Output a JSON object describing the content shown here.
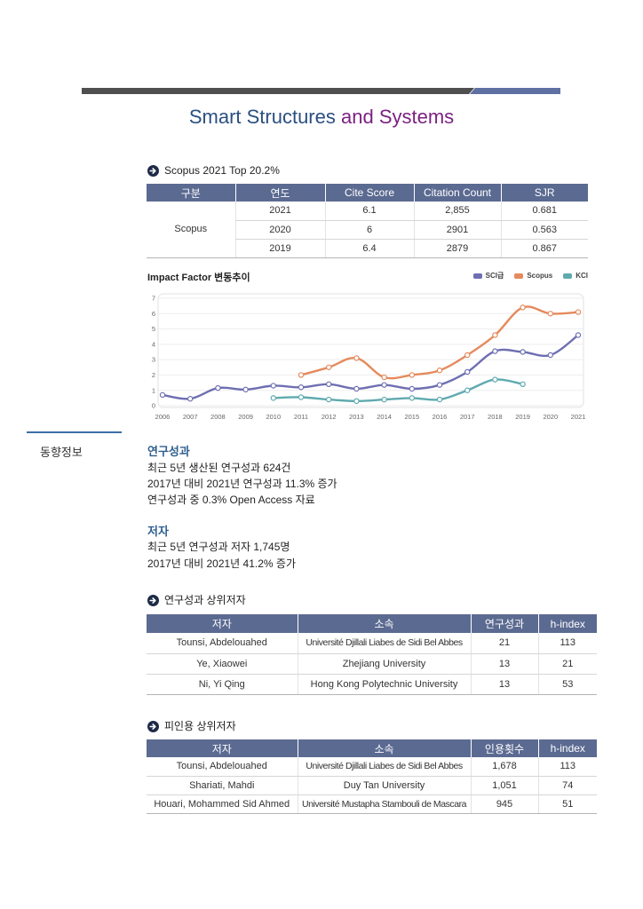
{
  "theme": {
    "title_primary": "#2b4f80",
    "title_secondary": "#7c2182",
    "table_header_bg": "#5b6a91",
    "heading_blue": "#2f5f8f",
    "sidebar_rule": "#3c6ea6"
  },
  "title": {
    "part1": "Smart Structures",
    "part2": "and Systems"
  },
  "scopus_section": {
    "heading": "Scopus 2021 Top 20.2%",
    "table": {
      "headers": [
        "구분",
        "연도",
        "Cite Score",
        "Citation Count",
        "SJR"
      ],
      "group_label": "Scopus",
      "rows": [
        {
          "year": "2021",
          "cite_score": "6.1",
          "citation_count": "2,855",
          "sjr": "0.681"
        },
        {
          "year": "2020",
          "cite_score": "6",
          "citation_count": "2901",
          "sjr": "0.563"
        },
        {
          "year": "2019",
          "cite_score": "6.4",
          "citation_count": "2879",
          "sjr": "0.867"
        }
      ]
    }
  },
  "chart_data": {
    "type": "line",
    "title": "Impact Factor 변동추이",
    "x": [
      2006,
      2007,
      2008,
      2009,
      2010,
      2011,
      2012,
      2013,
      2014,
      2015,
      2016,
      2017,
      2018,
      2019,
      2020,
      2021
    ],
    "yticks": [
      0,
      1,
      2,
      3,
      4,
      5,
      6,
      7
    ],
    "ylim": [
      0,
      7
    ],
    "grid": true,
    "legend_position": "top-right",
    "series": [
      {
        "name": "SCI급",
        "color": "#6e6fb3",
        "values": [
          0.7,
          0.45,
          1.15,
          1.05,
          1.3,
          1.2,
          1.4,
          1.1,
          1.35,
          1.1,
          1.35,
          2.2,
          3.55,
          3.5,
          3.3,
          4.6
        ]
      },
      {
        "name": "Scopus",
        "color": "#e48a5c",
        "values": [
          null,
          null,
          null,
          null,
          null,
          2.0,
          2.5,
          3.1,
          1.85,
          2.0,
          2.3,
          3.3,
          4.6,
          6.4,
          6.0,
          6.1
        ]
      },
      {
        "name": "KCI",
        "color": "#5eaaaf",
        "values": [
          null,
          null,
          null,
          null,
          0.5,
          0.55,
          0.4,
          0.3,
          0.4,
          0.5,
          0.4,
          1.0,
          1.7,
          1.4,
          null,
          null
        ]
      }
    ]
  },
  "sidebar": {
    "label": "동향정보"
  },
  "research": {
    "heading": "연구성과",
    "lines": [
      "최근 5년 생산된 연구성과 624건",
      "2017년 대비 2021년 연구성과 11.3% 증가",
      "연구성과 중 0.3% Open Access 자료"
    ]
  },
  "authors": {
    "heading": "저자",
    "lines": [
      "최근 5년 연구성과 저자 1,745명",
      "2017년 대비 2021년 41.2% 증가"
    ]
  },
  "top_authors_output": {
    "heading": "연구성과 상위저자",
    "headers": [
      "저자",
      "소속",
      "연구성과",
      "h-index"
    ],
    "rows": [
      {
        "name": "Tounsi, Abdelouahed",
        "affiliation": "Université Djillali Liabes de Sidi Bel Abbes",
        "count": "21",
        "h_index": "113"
      },
      {
        "name": "Ye, Xiaowei",
        "affiliation": "Zhejiang University",
        "count": "13",
        "h_index": "21"
      },
      {
        "name": "Ni, Yi Qing",
        "affiliation": "Hong Kong Polytechnic University",
        "count": "13",
        "h_index": "53"
      }
    ]
  },
  "top_authors_cited": {
    "heading": "피인용 상위저자",
    "headers": [
      "저자",
      "소속",
      "인용횟수",
      "h-index"
    ],
    "rows": [
      {
        "name": "Tounsi, Abdelouahed",
        "affiliation": "Université Djillali Liabes de Sidi Bel Abbes",
        "count": "1,678",
        "h_index": "113"
      },
      {
        "name": "Shariati, Mahdi",
        "affiliation": "Duy Tan University",
        "count": "1,051",
        "h_index": "74"
      },
      {
        "name": "Houari, Mohammed Sid Ahmed",
        "affiliation": "Université Mustapha Stambouli de Mascara",
        "count": "945",
        "h_index": "51"
      }
    ]
  }
}
